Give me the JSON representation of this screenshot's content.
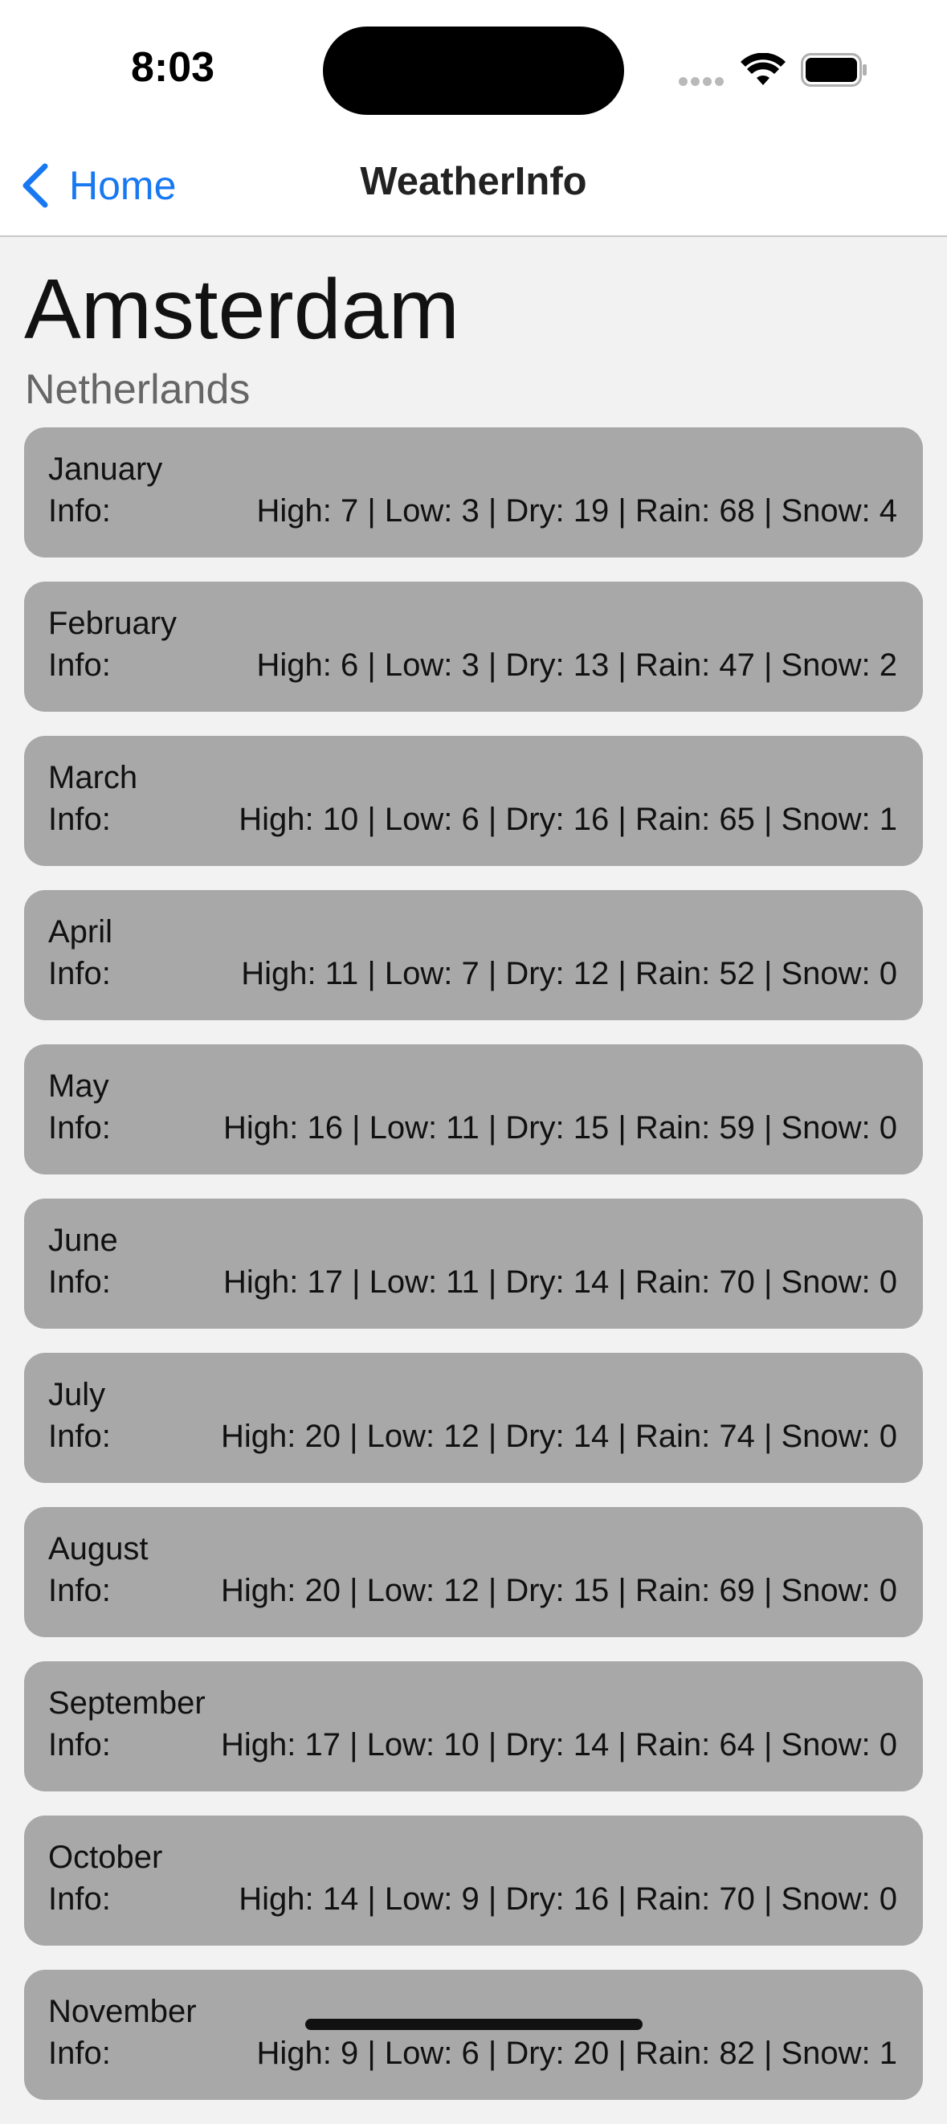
{
  "status_bar": {
    "time": "8:03"
  },
  "nav": {
    "back_label": "Home",
    "title": "WeatherInfo"
  },
  "location": {
    "city": "Amsterdam",
    "country": "Netherlands"
  },
  "info_label": "Info:",
  "months": [
    {
      "name": "January",
      "info": "High: 7 | Low: 3 | Dry: 19 | Rain: 68 | Snow: 4"
    },
    {
      "name": "February",
      "info": "High: 6 | Low: 3 | Dry: 13 | Rain: 47 | Snow: 2"
    },
    {
      "name": "March",
      "info": "High: 10 | Low: 6 | Dry: 16 | Rain: 65 | Snow: 1"
    },
    {
      "name": "April",
      "info": "High: 11 | Low: 7 | Dry: 12 | Rain: 52 | Snow: 0"
    },
    {
      "name": "May",
      "info": "High: 16 | Low: 11 | Dry: 15 | Rain: 59 | Snow: 0"
    },
    {
      "name": "June",
      "info": "High: 17 | Low: 11 | Dry: 14 | Rain: 70 | Snow: 0"
    },
    {
      "name": "July",
      "info": "High: 20 | Low: 12 | Dry: 14 | Rain: 74 | Snow: 0"
    },
    {
      "name": "August",
      "info": "High: 20 | Low: 12 | Dry: 15 | Rain: 69 | Snow: 0"
    },
    {
      "name": "September",
      "info": "High: 17 | Low: 10 | Dry: 14 | Rain: 64 | Snow: 0"
    },
    {
      "name": "October",
      "info": "High: 14 | Low: 9 | Dry: 16 | Rain: 70 | Snow: 0"
    },
    {
      "name": "November",
      "info": "High: 9 | Low: 6 | Dry: 20 | Rain: 82 | Snow: 1"
    }
  ],
  "colors": {
    "accent": "#1778f2",
    "card": "#a8a8a8",
    "background": "#f2f2f2"
  }
}
